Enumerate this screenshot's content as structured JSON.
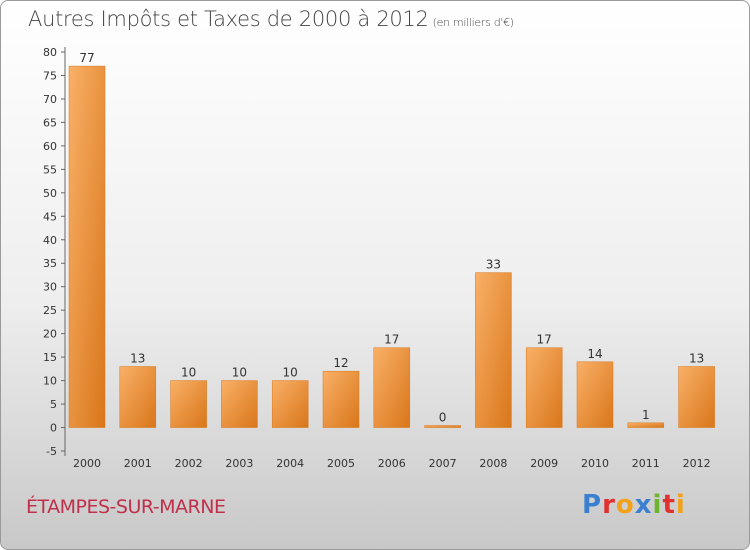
{
  "chart_data": {
    "type": "bar",
    "title": "Autres Impôts et Taxes de 2000 à 2012",
    "subtitle": "(en milliers d'€)",
    "categories": [
      "2000",
      "2001",
      "2002",
      "2003",
      "2004",
      "2005",
      "2006",
      "2007",
      "2008",
      "2009",
      "2010",
      "2011",
      "2012"
    ],
    "values": [
      77,
      13,
      10,
      10,
      10,
      12,
      17,
      0,
      33,
      17,
      14,
      1,
      13
    ],
    "ylim": [
      -5,
      80
    ],
    "yticks": [
      -5,
      0,
      5,
      10,
      15,
      20,
      25,
      30,
      35,
      40,
      45,
      50,
      55,
      60,
      65,
      70,
      75,
      80
    ],
    "grid": false,
    "bar_color": "#f08c2c"
  },
  "footer": {
    "town": "ÉTAMPES-SUR-MARNE",
    "logo": [
      "P",
      "r",
      "o",
      "x",
      "i",
      "t",
      "i"
    ],
    "logo_colors": [
      "#3a7fd0",
      "#e0312e",
      "#f2a21a",
      "#3a7fd0",
      "#6cb52d",
      "#e0312e",
      "#f2a21a"
    ]
  }
}
